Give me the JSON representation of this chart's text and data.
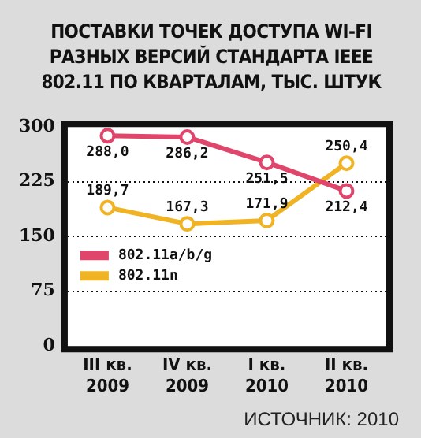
{
  "chart_data": {
    "type": "line",
    "title": "ПОСТАВКИ ТОЧЕК ДОСТУПА WI-FI РАЗНЫХ ВЕРСИЙ СТАНДАРТА IEEE 802.11 ПО КВАРТАЛАМ, ТЫС. ШТУК",
    "categories": [
      "III кв. 2009",
      "IV кв. 2009",
      "I кв. 2010",
      "II кв. 2010"
    ],
    "series": [
      {
        "name": "802.11a/b/g",
        "color": "#e0456b",
        "values": [
          288.0,
          286.2,
          251.5,
          212.4
        ],
        "value_labels": [
          "288,0",
          "286,2",
          "251,5",
          "212,4"
        ]
      },
      {
        "name": "802.11n",
        "color": "#f0b324",
        "values": [
          189.7,
          167.3,
          171.9,
          250.4
        ],
        "value_labels": [
          "189,7",
          "167,3",
          "171,9",
          "250,4"
        ]
      }
    ],
    "ylim": [
      0,
      300
    ],
    "yticks": [
      0,
      75,
      150,
      225,
      300
    ],
    "grid": "y",
    "legend": "left",
    "marker": "circle",
    "annotations": [
      "ИСТОЧНИК: 2010"
    ]
  }
}
